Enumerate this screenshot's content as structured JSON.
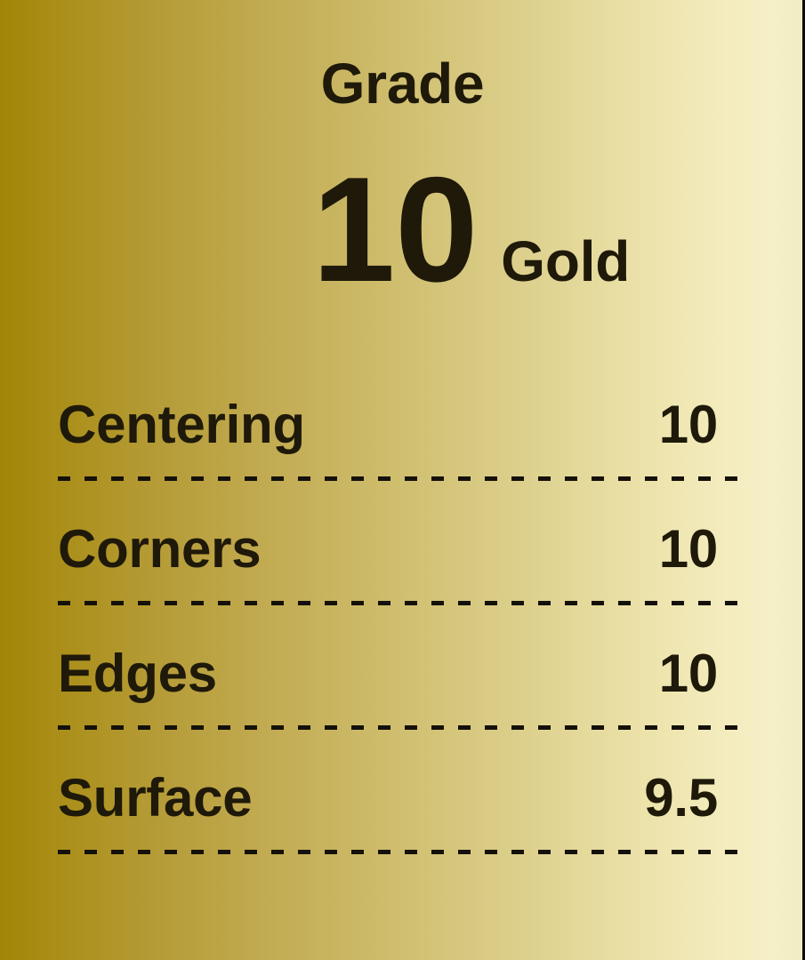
{
  "grade": {
    "heading": "Grade",
    "value": "10",
    "tier": "Gold"
  },
  "scores": [
    {
      "label": "Centering",
      "value": "10"
    },
    {
      "label": "Corners",
      "value": "10"
    },
    {
      "label": "Edges",
      "value": "10"
    },
    {
      "label": "Surface",
      "value": "9.5"
    }
  ],
  "colors": {
    "text": "#1e1909",
    "dash": "#14100a",
    "gradient_left": "#a18506",
    "gradient_right": "#f2ecc2",
    "right_edge_line": "#0f0c05"
  }
}
